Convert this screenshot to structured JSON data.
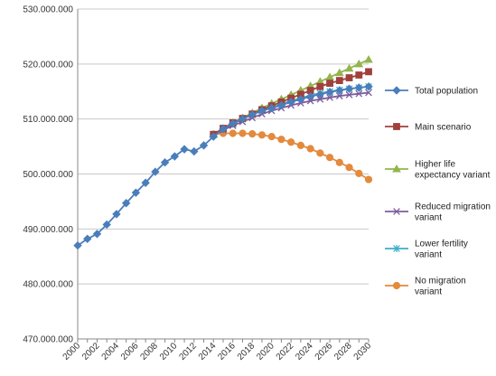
{
  "chart_data": {
    "type": "line",
    "title": "",
    "xlabel": "",
    "ylabel": "",
    "ylim": [
      470000000,
      530000000
    ],
    "y_ticks": [
      470000000,
      480000000,
      490000000,
      500000000,
      510000000,
      520000000,
      530000000
    ],
    "y_tick_labels": [
      "470.000.000",
      "480.000.000",
      "490.000.000",
      "500.000.000",
      "510.000.000",
      "520.000.000",
      "530.000.000"
    ],
    "xlim": [
      2000,
      2030
    ],
    "x_tick_labels": [
      "2000",
      "2002",
      "2004",
      "2006",
      "2008",
      "2010",
      "2012",
      "2014",
      "2016",
      "2018",
      "2020",
      "2022",
      "2024",
      "2026",
      "2028",
      "2030"
    ],
    "grid": "horizontal",
    "legend_position": "right",
    "series": [
      {
        "name": "Total population",
        "color": "#4a7ebb",
        "marker": "diamond",
        "x": [
          2000,
          2001,
          2002,
          2003,
          2004,
          2005,
          2006,
          2007,
          2008,
          2009,
          2010,
          2011,
          2012,
          2013,
          2014,
          2015,
          2016,
          2017,
          2018,
          2019,
          2020,
          2021,
          2022,
          2023,
          2024,
          2025,
          2026,
          2027,
          2028,
          2029,
          2030
        ],
        "values": [
          487000000,
          488200000,
          489100000,
          490800000,
          492700000,
          494700000,
          496600000,
          498400000,
          500400000,
          502100000,
          503200000,
          504500000,
          504100000,
          505200000,
          506800000,
          508200000,
          509200000,
          510000000,
          510800000,
          511500000,
          512000000,
          512500000,
          513100000,
          513600000,
          514100000,
          514500000,
          514900000,
          515200000,
          515500000,
          515700000,
          515900000
        ]
      },
      {
        "name": "Main scenario",
        "color": "#a0403c",
        "marker": "square",
        "x": [
          2014,
          2015,
          2016,
          2017,
          2018,
          2019,
          2020,
          2021,
          2022,
          2023,
          2024,
          2025,
          2026,
          2027,
          2028,
          2029,
          2030
        ],
        "values": [
          507200000,
          508300000,
          509300000,
          510100000,
          510900000,
          511700000,
          512400000,
          513100000,
          513800000,
          514500000,
          515200000,
          515900000,
          516500000,
          517000000,
          517500000,
          518000000,
          518600000
        ]
      },
      {
        "name": "Higher life expectancy variant",
        "color": "#93b54c",
        "marker": "triangle",
        "x": [
          2014,
          2015,
          2016,
          2017,
          2018,
          2019,
          2020,
          2021,
          2022,
          2023,
          2024,
          2025,
          2026,
          2027,
          2028,
          2029,
          2030
        ],
        "values": [
          507200000,
          508300000,
          509300000,
          510200000,
          511100000,
          512000000,
          512800000,
          513600000,
          514400000,
          515200000,
          516000000,
          516800000,
          517600000,
          518400000,
          519200000,
          520000000,
          520800000
        ]
      },
      {
        "name": "Reduced migration variant",
        "color": "#7b5b9e",
        "marker": "x",
        "x": [
          2014,
          2015,
          2016,
          2017,
          2018,
          2019,
          2020,
          2021,
          2022,
          2023,
          2024,
          2025,
          2026,
          2027,
          2028,
          2029,
          2030
        ],
        "values": [
          507200000,
          508000000,
          508800000,
          509500000,
          510200000,
          510900000,
          511500000,
          512000000,
          512500000,
          512900000,
          513300000,
          513600000,
          513900000,
          514200000,
          514400000,
          514600000,
          514800000
        ]
      },
      {
        "name": "Lower fertility variant",
        "color": "#3eadc9",
        "marker": "star",
        "x": [
          2014,
          2015,
          2016,
          2017,
          2018,
          2019,
          2020,
          2021,
          2022,
          2023,
          2024,
          2025,
          2026,
          2027,
          2028,
          2029,
          2030
        ],
        "values": [
          507200000,
          508200000,
          509100000,
          510000000,
          510800000,
          511500000,
          512100000,
          512700000,
          513300000,
          513800000,
          514300000,
          514700000,
          515000000,
          515300000,
          515500000,
          515700000,
          515900000
        ]
      },
      {
        "name": "No migration variant",
        "color": "#e38a3d",
        "marker": "circle",
        "x": [
          2014,
          2015,
          2016,
          2017,
          2018,
          2019,
          2020,
          2021,
          2022,
          2023,
          2024,
          2025,
          2026,
          2027,
          2028,
          2029,
          2030
        ],
        "values": [
          507200000,
          507400000,
          507400000,
          507400000,
          507300000,
          507100000,
          506800000,
          506300000,
          505800000,
          505200000,
          504600000,
          503800000,
          503000000,
          502100000,
          501200000,
          500100000,
          499000000
        ]
      }
    ]
  },
  "legend": {
    "entries": [
      {
        "lines": [
          "Total population"
        ]
      },
      {
        "lines": [
          "Main scenario"
        ]
      },
      {
        "lines": [
          "Higher life",
          "expectancy variant"
        ]
      },
      {
        "lines": [
          "Reduced migration",
          "variant"
        ]
      },
      {
        "lines": [
          "Lower fertility",
          "variant"
        ]
      },
      {
        "lines": [
          "No migration",
          "variant"
        ]
      }
    ]
  }
}
